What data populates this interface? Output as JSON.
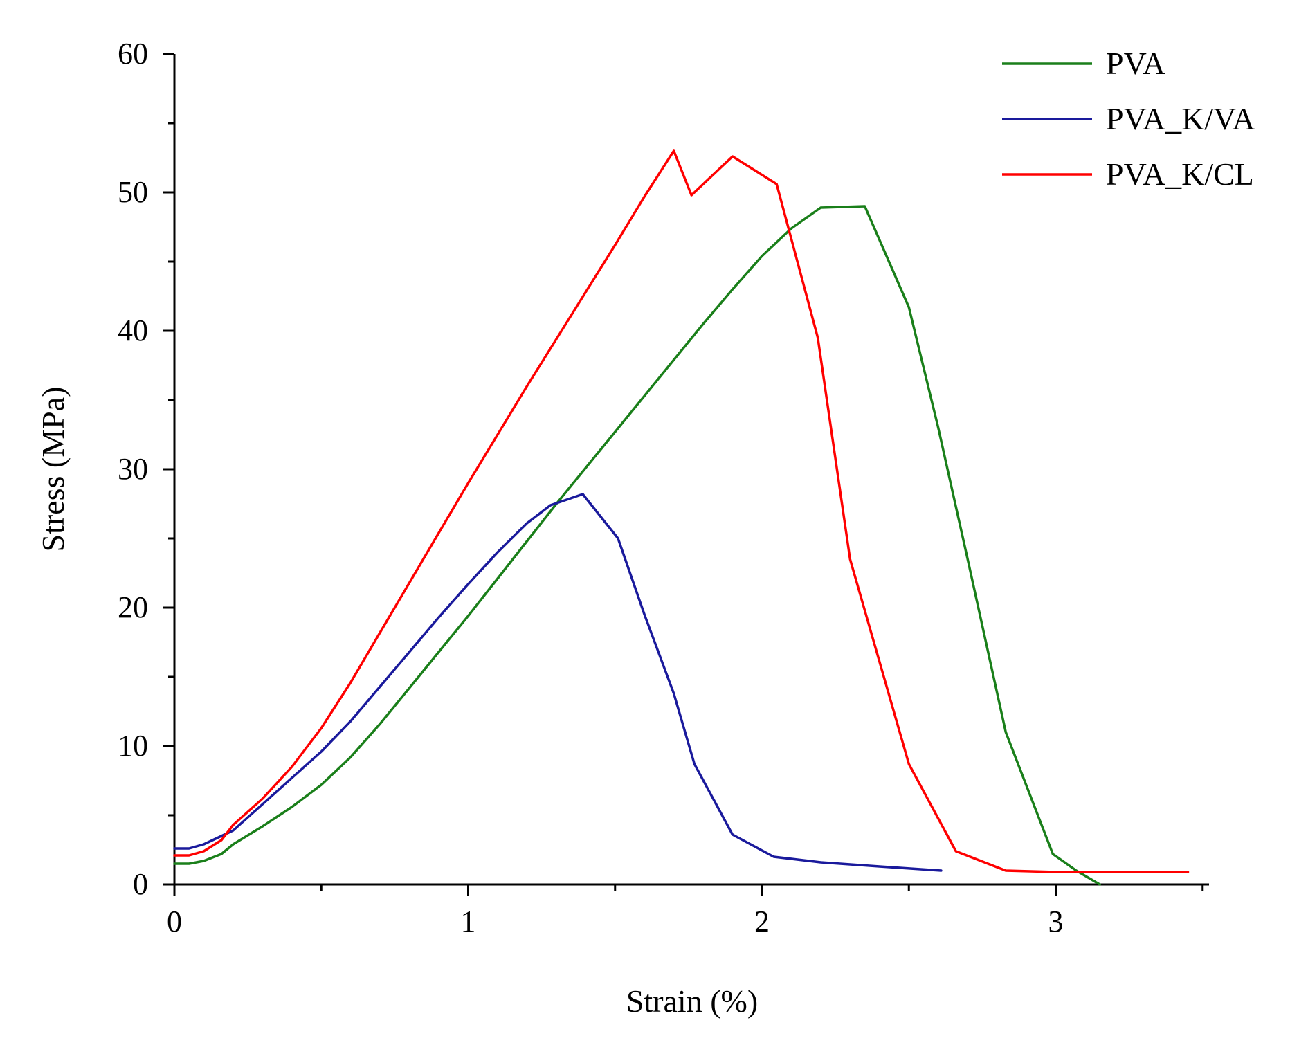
{
  "chart_data": {
    "type": "line",
    "title": "",
    "xlabel": "Strain (%)",
    "ylabel": "Stress (MPa)",
    "xlim": [
      0,
      3.5
    ],
    "ylim": [
      0,
      60
    ],
    "x_ticks": [
      0,
      1,
      2,
      3
    ],
    "x_tick_labels": [
      "0",
      "1",
      "2",
      "3"
    ],
    "x_minor_ticks": [
      0.5,
      1.5,
      2.5,
      3.5
    ],
    "y_ticks": [
      0,
      10,
      20,
      30,
      40,
      50,
      60
    ],
    "y_tick_labels": [
      "0",
      "10",
      "20",
      "30",
      "40",
      "50",
      "60"
    ],
    "y_minor_ticks": [
      5,
      15,
      25,
      35,
      45,
      55
    ],
    "grid": false,
    "legend_position": "top-right",
    "series": [
      {
        "name": "PVA",
        "color": "#1a7f1a",
        "points": [
          [
            0,
            1.5
          ],
          [
            0.05,
            1.5
          ],
          [
            0.1,
            1.7
          ],
          [
            0.16,
            2.2
          ],
          [
            0.2,
            2.9
          ],
          [
            0.3,
            4.2
          ],
          [
            0.4,
            5.6
          ],
          [
            0.5,
            7.2
          ],
          [
            0.6,
            9.2
          ],
          [
            0.7,
            11.6
          ],
          [
            0.8,
            14.2
          ],
          [
            0.9,
            16.8
          ],
          [
            1.0,
            19.4
          ],
          [
            1.1,
            22.1
          ],
          [
            1.2,
            24.8
          ],
          [
            1.3,
            27.5
          ],
          [
            1.4,
            30.1
          ],
          [
            1.5,
            32.7
          ],
          [
            1.6,
            35.3
          ],
          [
            1.7,
            37.9
          ],
          [
            1.8,
            40.5
          ],
          [
            1.9,
            43.0
          ],
          [
            2.0,
            45.4
          ],
          [
            2.1,
            47.4
          ],
          [
            2.2,
            48.9
          ],
          [
            2.35,
            49.0
          ],
          [
            2.5,
            41.7
          ],
          [
            2.6,
            33.0
          ],
          [
            2.7,
            23.5
          ],
          [
            2.83,
            11.0
          ],
          [
            2.99,
            2.2
          ],
          [
            3.07,
            1.0
          ],
          [
            3.15,
            0.0
          ]
        ]
      },
      {
        "name": "PVA_K/VA",
        "color": "#1a1a9c",
        "points": [
          [
            0,
            2.6
          ],
          [
            0.05,
            2.6
          ],
          [
            0.1,
            2.9
          ],
          [
            0.2,
            3.9
          ],
          [
            0.3,
            5.8
          ],
          [
            0.4,
            7.7
          ],
          [
            0.5,
            9.6
          ],
          [
            0.6,
            11.8
          ],
          [
            0.7,
            14.3
          ],
          [
            0.8,
            16.8
          ],
          [
            0.9,
            19.3
          ],
          [
            1.0,
            21.7
          ],
          [
            1.1,
            24.0
          ],
          [
            1.2,
            26.1
          ],
          [
            1.28,
            27.4
          ],
          [
            1.39,
            28.2
          ],
          [
            1.51,
            25.0
          ],
          [
            1.6,
            19.5
          ],
          [
            1.7,
            13.8
          ],
          [
            1.77,
            8.7
          ],
          [
            1.9,
            3.6
          ],
          [
            2.04,
            2.0
          ],
          [
            2.2,
            1.6
          ],
          [
            2.4,
            1.3
          ],
          [
            2.61,
            1.0
          ]
        ]
      },
      {
        "name": "PVA_K/CL",
        "color": "#ff0000",
        "points": [
          [
            0,
            2.1
          ],
          [
            0.05,
            2.1
          ],
          [
            0.1,
            2.4
          ],
          [
            0.16,
            3.2
          ],
          [
            0.2,
            4.3
          ],
          [
            0.3,
            6.2
          ],
          [
            0.4,
            8.5
          ],
          [
            0.5,
            11.3
          ],
          [
            0.6,
            14.6
          ],
          [
            0.7,
            18.2
          ],
          [
            0.8,
            21.8
          ],
          [
            0.9,
            25.4
          ],
          [
            1.0,
            29.0
          ],
          [
            1.1,
            32.5
          ],
          [
            1.2,
            36.0
          ],
          [
            1.3,
            39.4
          ],
          [
            1.4,
            42.8
          ],
          [
            1.5,
            46.2
          ],
          [
            1.6,
            49.7
          ],
          [
            1.7,
            53.0
          ],
          [
            1.76,
            49.8
          ],
          [
            1.9,
            52.6
          ],
          [
            2.05,
            50.6
          ],
          [
            2.19,
            39.5
          ],
          [
            2.3,
            23.5
          ],
          [
            2.5,
            8.7
          ],
          [
            2.66,
            2.4
          ],
          [
            2.83,
            1.0
          ],
          [
            3.0,
            0.9
          ],
          [
            3.45,
            0.9
          ]
        ]
      }
    ]
  }
}
